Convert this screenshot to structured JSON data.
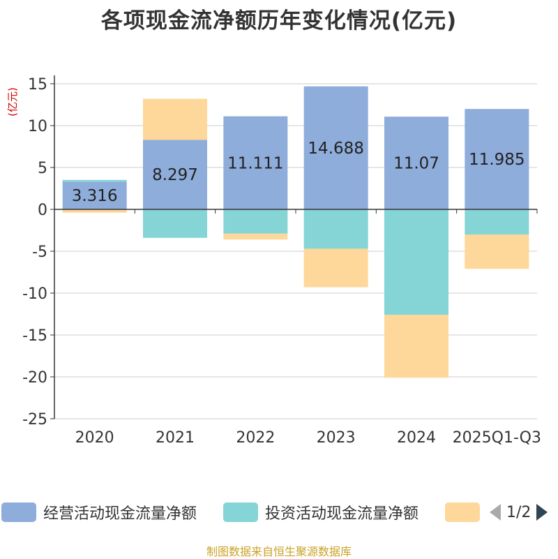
{
  "chart_data": {
    "type": "bar",
    "stacked": true,
    "title": "各项现金流净额历年变化情况(亿元)",
    "ylabel": "(亿元)",
    "xlabel": "",
    "ylim": [
      -25,
      15
    ],
    "yticks": [
      15,
      10,
      5,
      0,
      -5,
      -10,
      -15,
      -20,
      -25
    ],
    "grid": true,
    "categories": [
      "2020",
      "2021",
      "2022",
      "2023",
      "2024",
      "2025Q1-Q3"
    ],
    "series": [
      {
        "name": "经营活动现金流量净额",
        "color": "#8eadda",
        "values": [
          3.316,
          8.297,
          11.111,
          14.688,
          11.07,
          11.985
        ],
        "labels": [
          "3.316",
          "8.297",
          "11.111",
          "14.688",
          "11.07",
          "11.985"
        ]
      },
      {
        "name": "投资活动现金流量净额",
        "color": "#85d4d6",
        "values": [
          0.2,
          -3.4,
          -2.9,
          -4.7,
          -12.6,
          -3.0
        ]
      },
      {
        "name": "",
        "color": "#fdd89a",
        "values": [
          -0.4,
          4.9,
          -0.7,
          -4.6,
          -7.5,
          -4.1
        ]
      }
    ],
    "legend_position": "bottom"
  },
  "legend": {
    "items": [
      "经营活动现金流量净额",
      "投资活动现金流量净额",
      ""
    ],
    "page": "1/2"
  },
  "colors": {
    "axis_label": "#cc0000",
    "source": "#c9a227",
    "pager_active": "#2f4554",
    "pager_inactive": "#aaaaaa"
  },
  "source": "制图数据来自恒生聚源数据库"
}
